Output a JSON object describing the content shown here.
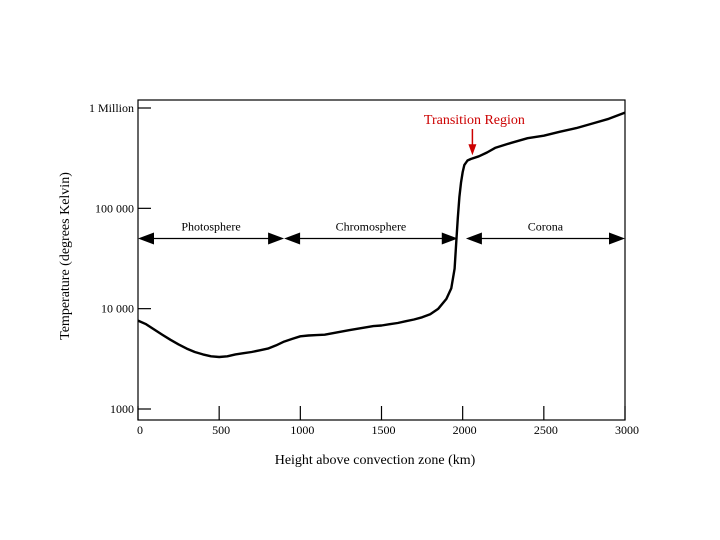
{
  "chart_data": {
    "type": "line",
    "title": "",
    "xlabel": "Height above convection zone (km)",
    "ylabel": "Temperature (degrees Kelvin)",
    "y_scale": "log",
    "xlim": [
      0,
      3000
    ],
    "ylim": [
      1000,
      1000000
    ],
    "x_ticks": [
      {
        "value": 0,
        "label": "0"
      },
      {
        "value": 500,
        "label": "500"
      },
      {
        "value": 1000,
        "label": "1000"
      },
      {
        "value": 1500,
        "label": "1500"
      },
      {
        "value": 2000,
        "label": "2000"
      },
      {
        "value": 2500,
        "label": "2500"
      },
      {
        "value": 3000,
        "label": "3000"
      }
    ],
    "y_ticks": [
      {
        "value": 1000,
        "label": "1000"
      },
      {
        "value": 10000,
        "label": "10 000"
      },
      {
        "value": 100000,
        "label": "100 000"
      },
      {
        "value": 1000000,
        "label": "1 Million"
      }
    ],
    "grid": false,
    "series": [
      {
        "color": "#000000",
        "x": [
          0,
          50,
          100,
          150,
          200,
          250,
          300,
          350,
          400,
          450,
          500,
          550,
          600,
          650,
          700,
          750,
          800,
          850,
          900,
          950,
          1000,
          1050,
          1100,
          1150,
          1200,
          1250,
          1300,
          1350,
          1400,
          1450,
          1500,
          1550,
          1600,
          1650,
          1700,
          1750,
          1800,
          1850,
          1900,
          1930,
          1950,
          1960,
          1970,
          1980,
          1990,
          2000,
          2010,
          2030,
          2050,
          2100,
          2150,
          2200,
          2300,
          2400,
          2500,
          2600,
          2700,
          2800,
          2900,
          3000
        ],
        "y": [
          7600,
          7000,
          6200,
          5500,
          4900,
          4400,
          4000,
          3700,
          3500,
          3350,
          3300,
          3350,
          3500,
          3600,
          3700,
          3850,
          4000,
          4300,
          4700,
          5000,
          5300,
          5400,
          5450,
          5500,
          5700,
          5900,
          6100,
          6300,
          6500,
          6700,
          6800,
          7000,
          7200,
          7500,
          7800,
          8200,
          8800,
          10000,
          12500,
          16000,
          25000,
          45000,
          80000,
          130000,
          180000,
          230000,
          270000,
          300000,
          310000,
          330000,
          360000,
          400000,
          450000,
          500000,
          530000,
          580000,
          630000,
          700000,
          780000,
          900000
        ]
      }
    ],
    "regions": [
      {
        "label": "Photosphere",
        "x_start": 0,
        "x_end": 900,
        "value": 50000
      },
      {
        "label": "Chromosphere",
        "x_start": 900,
        "x_end": 1970,
        "value": 50000
      },
      {
        "label": "Corona",
        "x_start": 2020,
        "x_end": 3000,
        "value": 50000
      }
    ],
    "annotations": [
      {
        "text": "Transition Region",
        "color": "#cc0000",
        "x": 2060,
        "y": 330000
      }
    ]
  }
}
